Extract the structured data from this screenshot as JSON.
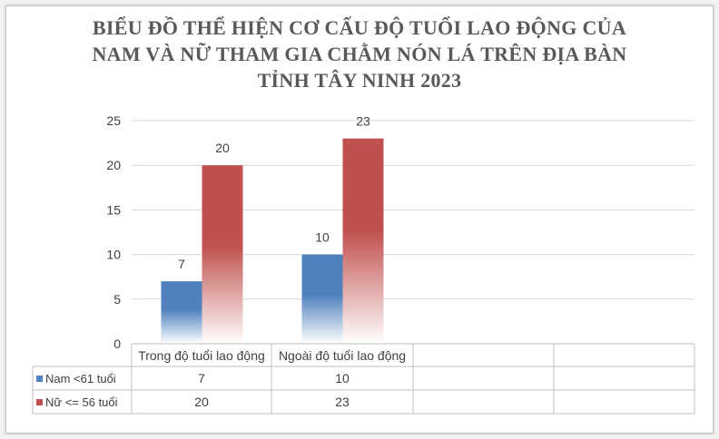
{
  "chart_data": {
    "type": "bar",
    "title_lines": [
      "BIỂU ĐỒ THỂ HIỆN CƠ CẤU ĐỘ TUỔI LAO ĐỘNG CỦA",
      "NAM VÀ NỮ THAM GIA CHẰM NÓN LÁ TRÊN ĐỊA BÀN",
      "TỈNH TÂY NINH 2023"
    ],
    "categories": [
      "Trong độ tuổi lao động",
      "Ngoài độ tuổi lao động"
    ],
    "series": [
      {
        "name": "Nam <61 tuổi",
        "values": [
          7,
          10
        ],
        "color": "#4f81bd"
      },
      {
        "name": "Nữ <= 56 tuổi",
        "values": [
          20,
          23
        ],
        "color": "#c0504d"
      }
    ],
    "yticks": [
      "0",
      "5",
      "10",
      "15",
      "20",
      "25"
    ],
    "ylim": [
      0,
      25
    ],
    "grid": true,
    "legend": "data-table"
  }
}
